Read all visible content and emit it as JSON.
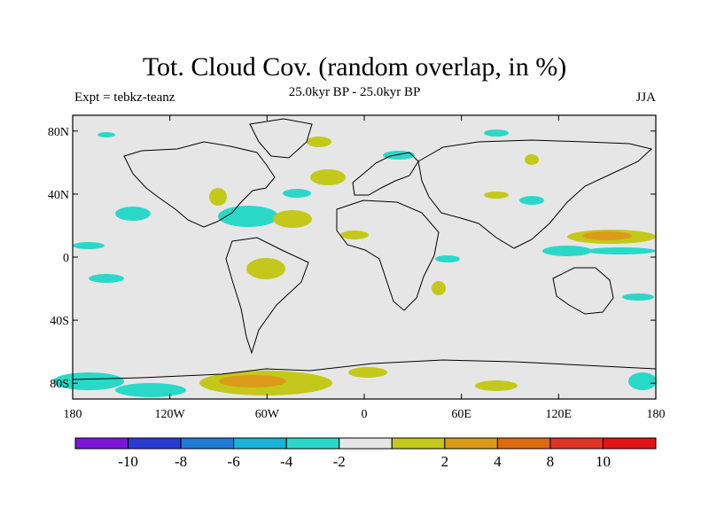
{
  "title": "Tot. Cloud Cov. (random overlap, in %)",
  "subtitle": "25.0kyr BP - 25.0kyr BP",
  "left_label": "Expt = tebkz-teanz",
  "right_label": "JJA",
  "map": {
    "lon_range": [
      -180,
      180
    ],
    "lat_range": [
      -90,
      90
    ],
    "background_color": "#e6e6e6",
    "lon_ticks": [
      {
        "value": -180,
        "label": "180"
      },
      {
        "value": -120,
        "label": "120W"
      },
      {
        "value": -60,
        "label": "60W"
      },
      {
        "value": 0,
        "label": "0"
      },
      {
        "value": 60,
        "label": "60E"
      },
      {
        "value": 120,
        "label": "120E"
      },
      {
        "value": 180,
        "label": "180"
      }
    ],
    "lat_ticks": [
      {
        "value": 80,
        "label": "80N"
      },
      {
        "value": 40,
        "label": "40N"
      },
      {
        "value": 0,
        "label": "0"
      },
      {
        "value": -40,
        "label": "40S"
      },
      {
        "value": -80,
        "label": "80S"
      }
    ]
  },
  "colorbar": {
    "colors": [
      "#7b14d8",
      "#2a3ad6",
      "#1f7bd6",
      "#19b2d8",
      "#2ad8c8",
      "#e6e6e6",
      "#c4c81a",
      "#dc9a18",
      "#de6a10",
      "#e03222",
      "#e01414"
    ],
    "labels": [
      "-10",
      "-8",
      "-6",
      "-4",
      "-2",
      "2",
      "4",
      "8",
      "10"
    ]
  }
}
